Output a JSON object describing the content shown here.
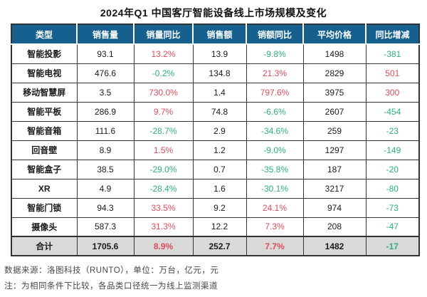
{
  "chart_data": {
    "type": "table",
    "title": "2024年Q1 中国客厅智能设备线上市场规模及变化",
    "columns": [
      "类型",
      "销售量",
      "销量同比",
      "销售额",
      "销额同比",
      "平均价格",
      "同比增减"
    ],
    "rows": [
      [
        "智能投影",
        "93.1",
        "13.2%",
        "13.9",
        "-9.8%",
        "1498",
        "-381"
      ],
      [
        "智能电视",
        "476.6",
        "-0.2%",
        "134.8",
        "21.3%",
        "2829",
        "501"
      ],
      [
        "移动智慧屏",
        "3.5",
        "730.0%",
        "1.4",
        "797.6%",
        "3975",
        "300"
      ],
      [
        "智能平板",
        "286.9",
        "9.7%",
        "74.8",
        "-6.6%",
        "2607",
        "-454"
      ],
      [
        "智能音箱",
        "111.6",
        "-28.7%",
        "2.9",
        "-34.6%",
        "259",
        "-23"
      ],
      [
        "回音壁",
        "8.9",
        "1.5%",
        "1.2",
        "-9.0%",
        "1297",
        "-149"
      ],
      [
        "智能盒子",
        "38.5",
        "-29.0%",
        "0.7",
        "-35.8%",
        "187",
        "-20"
      ],
      [
        "XR",
        "4.9",
        "-28.4%",
        "1.6",
        "-30.1%",
        "3217",
        "-80"
      ],
      [
        "智能门锁",
        "94.3",
        "33.5%",
        "9.2",
        "24.1%",
        "974",
        "-73"
      ],
      [
        "摄像头",
        "587.3",
        "31.3%",
        "12.2",
        "7.3%",
        "208",
        "-47"
      ]
    ],
    "total": [
      "合计",
      "1705.6",
      "8.9%",
      "252.7",
      "7.7%",
      "1482",
      "-17"
    ],
    "colored_column_indexes": [
      2,
      4,
      6
    ],
    "units_note": "万台, 亿元, 元",
    "source_note": "数据来源：洛图科技（RUNTO），单位：万台，亿元，元",
    "footnote": "注：为相同条件下比较，各品类口径统一为线上监测渠道",
    "colors": {
      "header_background": "#15608e",
      "positive_red": "#e14b5a",
      "negative_green": "#2eaf7d",
      "total_row_background": "#d9d9d9",
      "grid_border": "#333333"
    },
    "legend_position": "none",
    "grid": true
  }
}
